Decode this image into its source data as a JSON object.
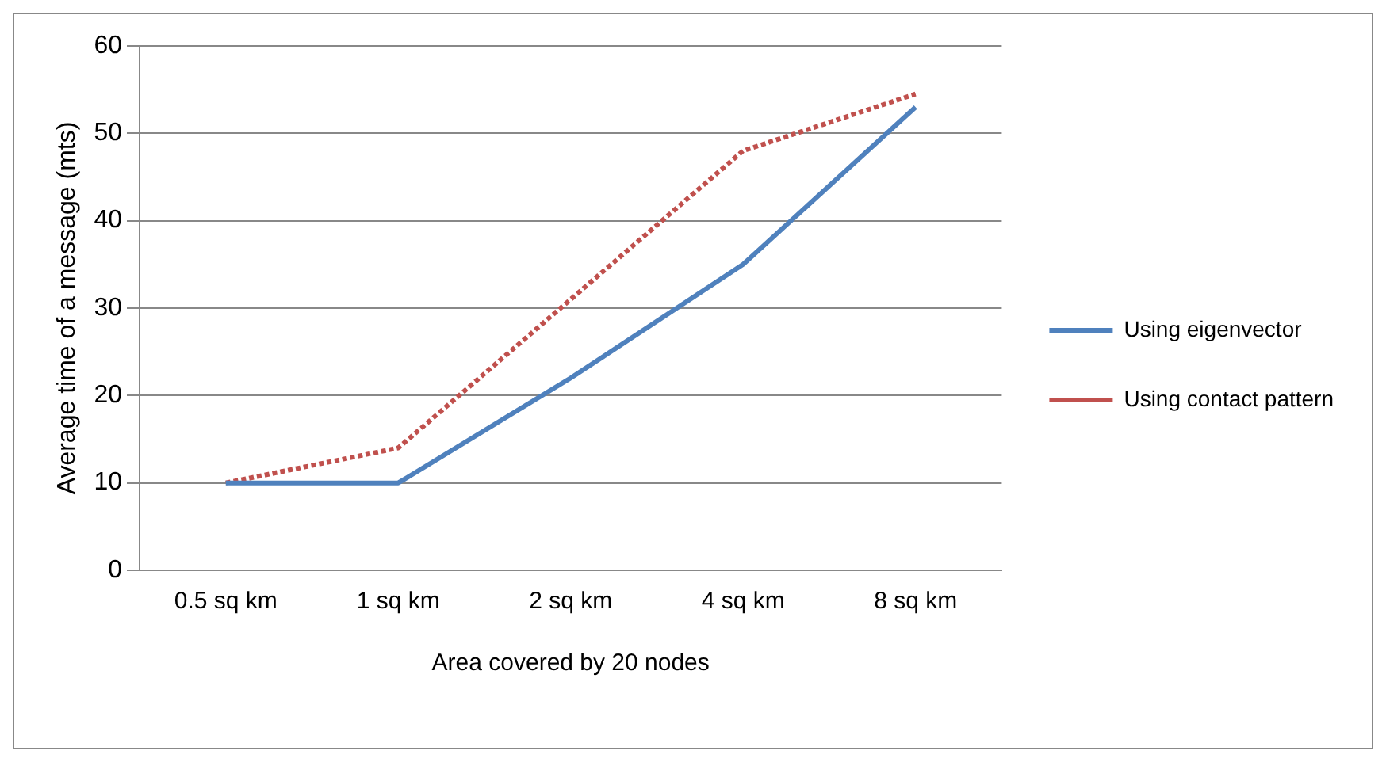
{
  "chart_data": {
    "type": "line",
    "xlabel": "Area covered by 20 nodes",
    "ylabel": "Average time of a message (mts)",
    "categories": [
      "0.5 sq km",
      "1 sq km",
      "2 sq km",
      "4 sq km",
      "8 sq km"
    ],
    "series": [
      {
        "name": "Using eigenvector",
        "color": "#4f81bd",
        "values": [
          10,
          10,
          22,
          35,
          53
        ],
        "line_style": "solid"
      },
      {
        "name": "Using contact pattern",
        "color": "#c0504d",
        "values": [
          10,
          14,
          31,
          48,
          54.5
        ],
        "line_style": "dotted"
      }
    ],
    "ylim": [
      0,
      60
    ],
    "yticks": [
      0,
      10,
      20,
      30,
      40,
      50,
      60
    ],
    "grid": "y",
    "legend": "right",
    "marker": "none"
  }
}
